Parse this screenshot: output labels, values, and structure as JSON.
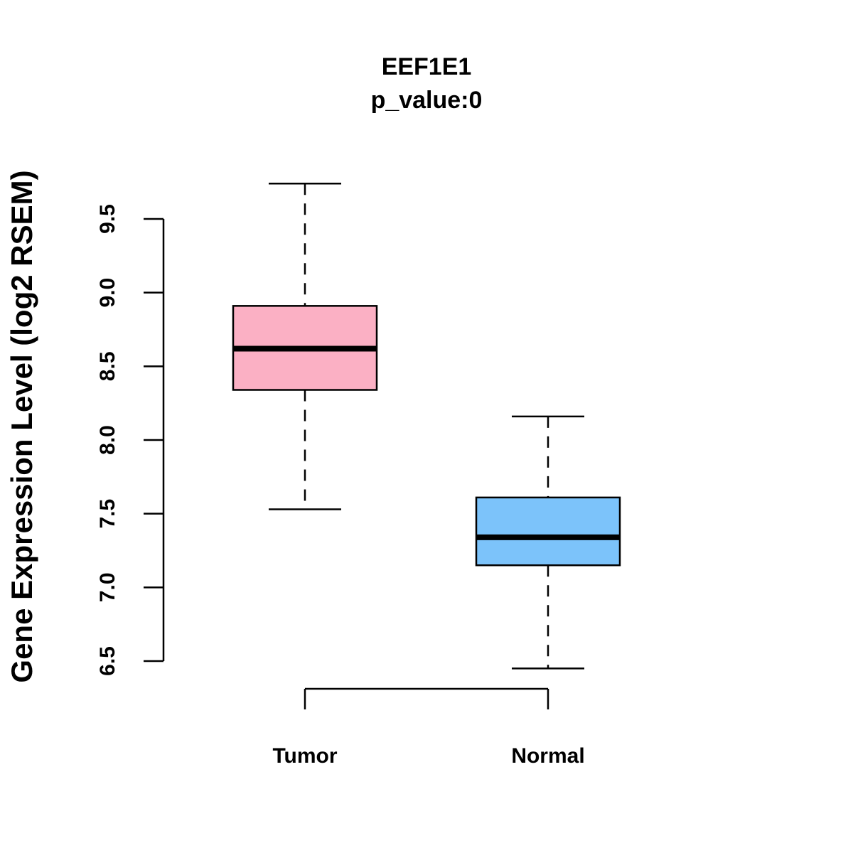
{
  "chart_data": {
    "type": "boxplot",
    "title": "EEF1E1",
    "subtitle": "p_value:0",
    "xlabel": "",
    "ylabel": "Gene Expression Level (log2 RSEM)",
    "ylim": [
      6.5,
      9.5
    ],
    "yticks": [
      "6.5",
      "7.0",
      "7.5",
      "8.0",
      "8.5",
      "9.0",
      "9.5"
    ],
    "categories": [
      "Tumor",
      "Normal"
    ],
    "boxes": [
      {
        "name": "Tumor",
        "whisker_low": 7.53,
        "q1": 8.34,
        "median": 8.62,
        "q3": 8.91,
        "whisker_high": 9.74,
        "color": "#FBB0C4"
      },
      {
        "name": "Normal",
        "whisker_low": 6.45,
        "q1": 7.15,
        "median": 7.34,
        "q3": 7.61,
        "whisker_high": 8.16,
        "color": "#7CC3FA"
      }
    ],
    "grid": false,
    "legend": "none"
  }
}
